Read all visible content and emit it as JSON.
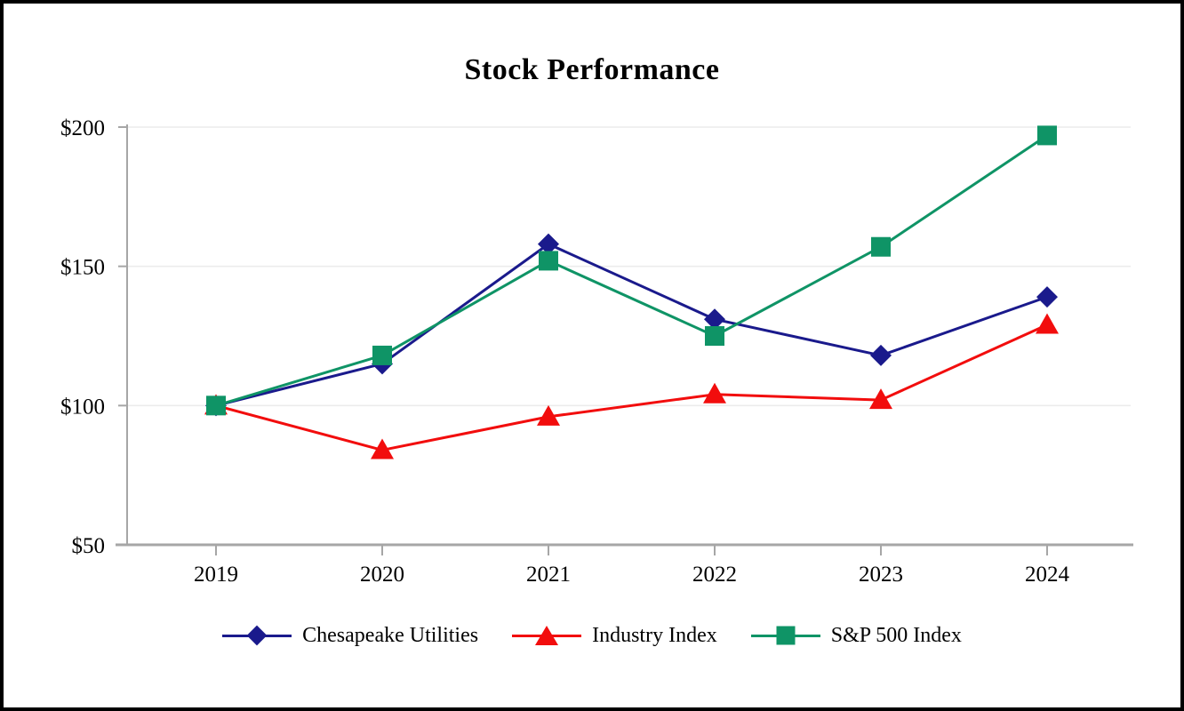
{
  "chart_data": {
    "type": "line",
    "title": "Stock Performance",
    "categories": [
      "2019",
      "2020",
      "2021",
      "2022",
      "2023",
      "2024"
    ],
    "series": [
      {
        "name": "Chesapeake Utilities",
        "marker": "diamond",
        "color": "#1A1A8C",
        "values": [
          100,
          115,
          158,
          131,
          118,
          139
        ]
      },
      {
        "name": "Industry Index",
        "marker": "triangle",
        "color": "#F20D0D",
        "values": [
          100,
          84,
          96,
          104,
          102,
          129
        ]
      },
      {
        "name": "S&P 500 Index",
        "marker": "square",
        "color": "#0F9466",
        "values": [
          100,
          118,
          152,
          125,
          157,
          197
        ]
      }
    ],
    "xlabel": "",
    "ylabel": "",
    "ylim": [
      50,
      200
    ],
    "yticks": [
      50,
      100,
      150,
      200
    ],
    "ytick_labels": [
      "$50",
      "$100",
      "$150",
      "$200"
    ],
    "grid": "horizontal gridlines at 100, 150, 200",
    "legend_position": "bottom",
    "colors": {
      "gridline": "#ECECEC",
      "axis": "#A6A6A6",
      "text": "#000000",
      "background": "#FFFFFF"
    }
  }
}
